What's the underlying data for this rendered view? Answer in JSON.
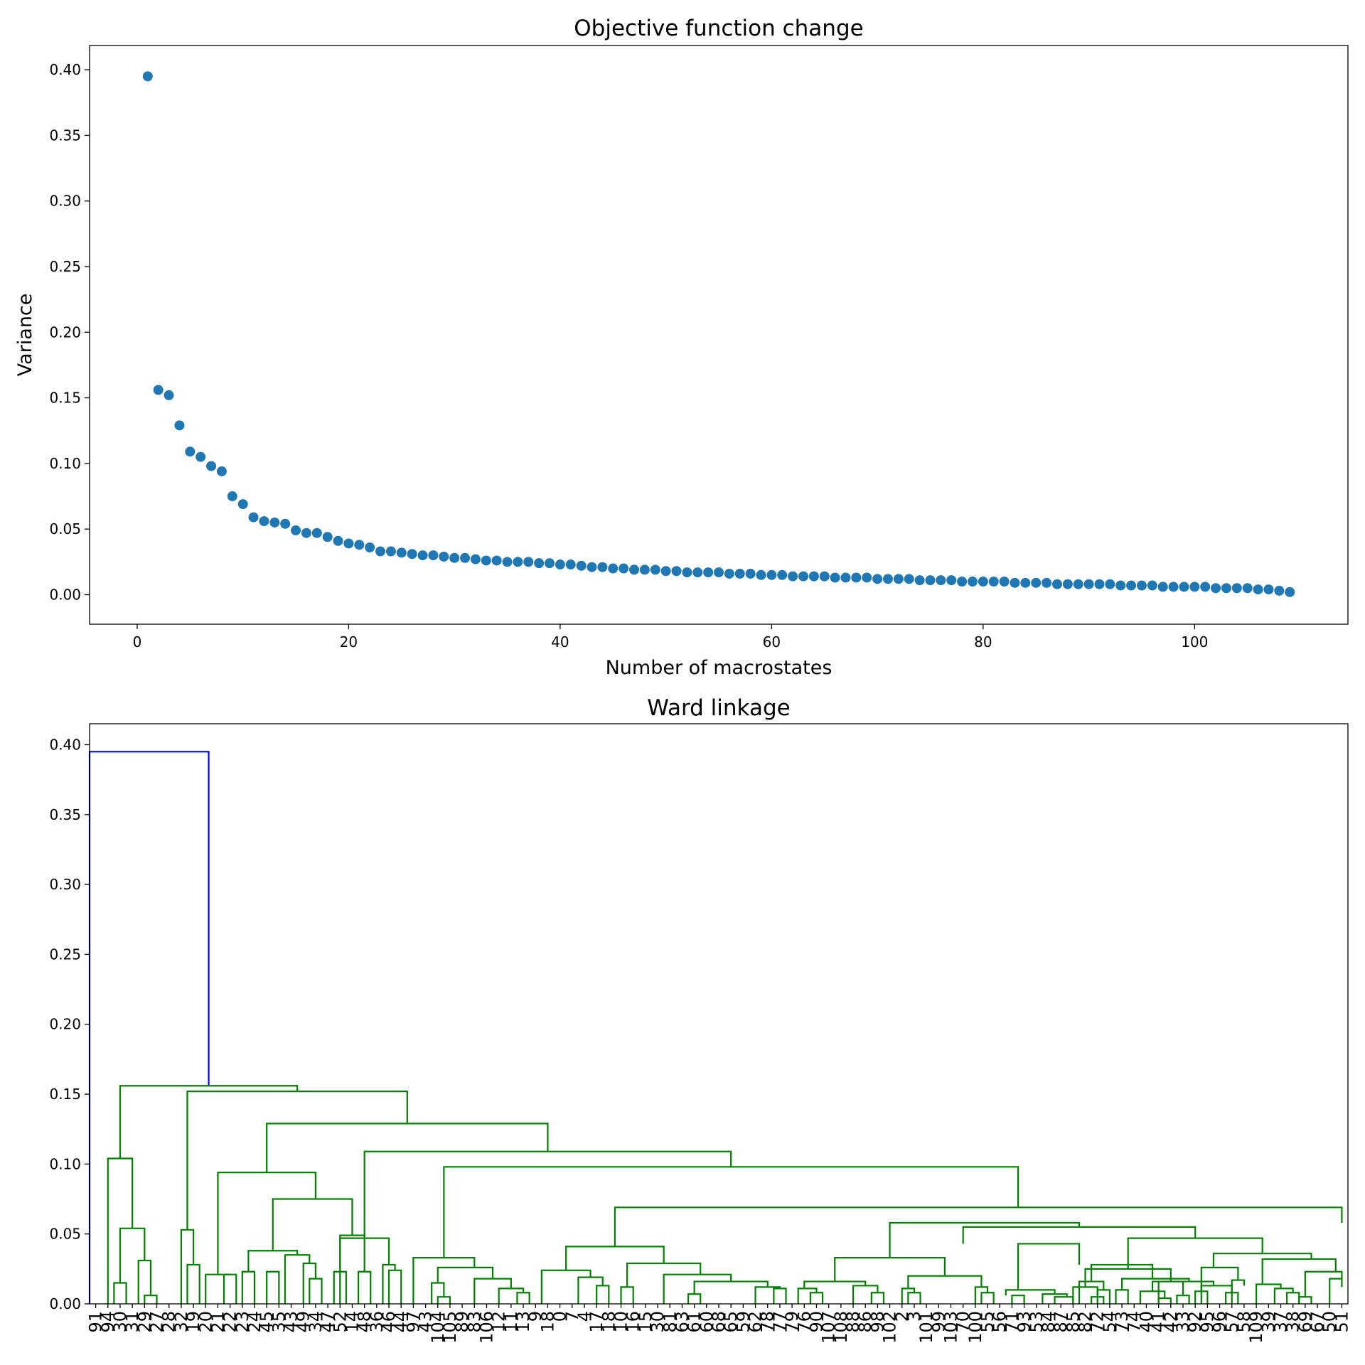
{
  "chart_data": [
    {
      "type": "scatter",
      "title": "Objective function change",
      "xlabel": "Number of macrostates",
      "ylabel": "Variance",
      "xlim": [
        -4.5,
        114.5
      ],
      "ylim": [
        -0.0225,
        0.4185
      ],
      "xticks": [
        0,
        20,
        40,
        60,
        80,
        100
      ],
      "yticks": [
        0.0,
        0.05,
        0.1,
        0.15,
        0.2,
        0.25,
        0.3,
        0.35,
        0.4
      ],
      "ytick_labels": [
        "0.00",
        "0.05",
        "0.10",
        "0.15",
        "0.20",
        "0.25",
        "0.30",
        "0.35",
        "0.40"
      ],
      "grid": false,
      "marker_color": "#1f77b4",
      "x": [
        1,
        2,
        3,
        4,
        5,
        6,
        7,
        8,
        9,
        10,
        11,
        12,
        13,
        14,
        15,
        16,
        17,
        18,
        19,
        20,
        21,
        22,
        23,
        24,
        25,
        26,
        27,
        28,
        29,
        30,
        31,
        32,
        33,
        34,
        35,
        36,
        37,
        38,
        39,
        40,
        41,
        42,
        43,
        44,
        45,
        46,
        47,
        48,
        49,
        50,
        51,
        52,
        53,
        54,
        55,
        56,
        57,
        58,
        59,
        60,
        61,
        62,
        63,
        64,
        65,
        66,
        67,
        68,
        69,
        70,
        71,
        72,
        73,
        74,
        75,
        76,
        77,
        78,
        79,
        80,
        81,
        82,
        83,
        84,
        85,
        86,
        87,
        88,
        89,
        90,
        91,
        92,
        93,
        94,
        95,
        96,
        97,
        98,
        99,
        100,
        101,
        102,
        103,
        104,
        105,
        106,
        107,
        108,
        109
      ],
      "y": [
        0.395,
        0.156,
        0.152,
        0.129,
        0.109,
        0.105,
        0.098,
        0.094,
        0.075,
        0.069,
        0.059,
        0.056,
        0.055,
        0.054,
        0.049,
        0.047,
        0.047,
        0.044,
        0.041,
        0.039,
        0.038,
        0.036,
        0.033,
        0.033,
        0.032,
        0.031,
        0.03,
        0.03,
        0.029,
        0.028,
        0.028,
        0.027,
        0.026,
        0.026,
        0.025,
        0.025,
        0.025,
        0.024,
        0.024,
        0.023,
        0.023,
        0.022,
        0.021,
        0.021,
        0.02,
        0.02,
        0.019,
        0.019,
        0.019,
        0.018,
        0.018,
        0.017,
        0.017,
        0.017,
        0.017,
        0.016,
        0.016,
        0.016,
        0.015,
        0.015,
        0.015,
        0.014,
        0.014,
        0.014,
        0.014,
        0.013,
        0.013,
        0.013,
        0.013,
        0.012,
        0.012,
        0.012,
        0.012,
        0.011,
        0.011,
        0.011,
        0.011,
        0.01,
        0.01,
        0.01,
        0.01,
        0.01,
        0.009,
        0.009,
        0.009,
        0.009,
        0.008,
        0.008,
        0.008,
        0.008,
        0.008,
        0.008,
        0.007,
        0.007,
        0.007,
        0.007,
        0.006,
        0.006,
        0.006,
        0.006,
        0.006,
        0.005,
        0.005,
        0.005,
        0.005,
        0.004,
        0.004,
        0.003,
        0.002
      ]
    },
    {
      "type": "dendrogram",
      "title": "Ward linkage",
      "xlabel": "",
      "ylabel": "",
      "ylim": [
        0.0,
        0.415
      ],
      "yticks": [
        0.0,
        0.05,
        0.1,
        0.15,
        0.2,
        0.25,
        0.3,
        0.35,
        0.4
      ],
      "ytick_labels": [
        "0.00",
        "0.05",
        "0.10",
        "0.15",
        "0.20",
        "0.25",
        "0.30",
        "0.35",
        "0.40"
      ],
      "grid": false,
      "above_threshold_color": "#0000ff",
      "cluster_color": "#008000",
      "leaf_labels": [
        "91",
        "94",
        "30",
        "31",
        "29",
        "27",
        "28",
        "32",
        "19",
        "20",
        "21",
        "22",
        "23",
        "24",
        "45",
        "35",
        "43",
        "49",
        "34",
        "47",
        "52",
        "14",
        "48",
        "36",
        "46",
        "44",
        "97",
        "43",
        "104",
        "105",
        "89",
        "83",
        "106",
        "12",
        "11",
        "13",
        "9",
        "18",
        "0",
        "7",
        "4",
        "17",
        "18",
        "10",
        "16",
        "15",
        "30",
        "81",
        "63",
        "61",
        "60",
        "68",
        "65",
        "59",
        "62",
        "78",
        "77",
        "79",
        "76",
        "90",
        "107",
        "108",
        "88",
        "86",
        "98",
        "102",
        "2",
        "3",
        "101",
        "99",
        "103",
        "70",
        "100",
        "55",
        "56",
        "71",
        "93",
        "53",
        "84",
        "87",
        "85",
        "82",
        "72",
        "54",
        "73",
        "74",
        "40",
        "41",
        "42",
        "33",
        "92",
        "95",
        "96",
        "57",
        "58",
        "109",
        "39",
        "37",
        "38",
        "69",
        "67",
        "50",
        "51"
      ],
      "leaf_label_color": "#000000",
      "leaf_count": 103,
      "leaf_x_range": [
        5,
        1025
      ],
      "merges": [
        {
          "lx": 0,
          "rx": 97.5,
          "h": 0.395,
          "lh": 0,
          "rh": 0.156,
          "color": "blue"
        },
        {
          "lx": 25,
          "rx": 170,
          "h": 0.156,
          "lh": 0.104,
          "rh": 0.152
        },
        {
          "lx": 15,
          "rx": 35,
          "h": 0.104,
          "lh": 0,
          "rh": 0.054
        },
        {
          "lx": 25,
          "rx": 45,
          "h": 0.054,
          "lh": 0.015,
          "rh": 0.031
        },
        {
          "lx": 20,
          "rx": 30,
          "h": 0.015,
          "lh": 0,
          "rh": 0
        },
        {
          "lx": 40,
          "rx": 50,
          "h": 0.031,
          "lh": 0,
          "rh": 0.006
        },
        {
          "lx": 45,
          "rx": 55,
          "h": 0.006,
          "lh": 0,
          "rh": 0
        },
        {
          "lx": 80,
          "rx": 260,
          "h": 0.152,
          "lh": 0.053,
          "rh": 0.129
        },
        {
          "lx": 75,
          "rx": 85,
          "h": 0.053,
          "lh": 0,
          "rh": 0.028
        },
        {
          "lx": 80,
          "rx": 90,
          "h": 0.028,
          "lh": 0,
          "rh": 0
        },
        {
          "lx": 145,
          "rx": 375,
          "h": 0.129,
          "lh": 0.094,
          "rh": 0.109
        },
        {
          "lx": 105,
          "rx": 185,
          "h": 0.094,
          "lh": 0.021,
          "rh": 0.075
        },
        {
          "lx": 95,
          "rx": 115,
          "h": 0.021,
          "lh": 0,
          "rh": 0.021
        },
        {
          "lx": 110,
          "rx": 120,
          "h": 0.021,
          "lh": 0,
          "rh": 0
        },
        {
          "lx": 125,
          "rx": 135,
          "h": 0.023,
          "lh": 0,
          "rh": 0
        },
        {
          "lx": 150,
          "rx": 215,
          "h": 0.075,
          "lh": 0.038,
          "rh": 0.049
        },
        {
          "lx": 130,
          "rx": 170,
          "h": 0.038,
          "lh": 0.023,
          "rh": 0.035
        },
        {
          "lx": 145,
          "rx": 155,
          "h": 0.023,
          "lh": 0,
          "rh": 0
        },
        {
          "lx": 160,
          "rx": 180,
          "h": 0.035,
          "lh": 0,
          "rh": 0.029
        },
        {
          "lx": 175,
          "rx": 185,
          "h": 0.029,
          "lh": 0,
          "rh": 0.018
        },
        {
          "lx": 180,
          "rx": 190,
          "h": 0.018,
          "lh": 0,
          "rh": 0
        },
        {
          "lx": 205,
          "rx": 225,
          "h": 0.049,
          "lh": 0,
          "rh": 0.023
        },
        {
          "lx": 220,
          "rx": 230,
          "h": 0.023,
          "lh": 0,
          "rh": 0
        },
        {
          "lx": 225,
          "rx": 525,
          "h": 0.109,
          "lh": 0.047,
          "rh": 0.098
        },
        {
          "lx": 205,
          "rx": 245,
          "h": 0.047,
          "lh": 0.023,
          "rh": 0.028
        },
        {
          "lx": 200,
          "rx": 210,
          "h": 0.023,
          "lh": 0,
          "rh": 0
        },
        {
          "lx": 240,
          "rx": 250,
          "h": 0.028,
          "lh": 0,
          "rh": 0.024
        },
        {
          "lx": 245,
          "rx": 255,
          "h": 0.024,
          "lh": 0,
          "rh": 0
        },
        {
          "lx": 290,
          "rx": 760,
          "h": 0.098,
          "lh": 0.033,
          "rh": 0.069
        },
        {
          "lx": 265,
          "rx": 315,
          "h": 0.033,
          "lh": 0,
          "rh": 0.026
        },
        {
          "lx": 285,
          "rx": 330,
          "h": 0.026,
          "lh": 0.015,
          "rh": 0.018
        },
        {
          "lx": 280,
          "rx": 290,
          "h": 0.015,
          "lh": 0,
          "rh": 0.005
        },
        {
          "lx": 285,
          "rx": 295,
          "h": 0.005,
          "lh": 0,
          "rh": 0
        },
        {
          "lx": 315,
          "rx": 345,
          "h": 0.018,
          "lh": 0,
          "rh": 0.011
        },
        {
          "lx": 335,
          "rx": 355,
          "h": 0.011,
          "lh": 0,
          "rh": 0.008
        },
        {
          "lx": 350,
          "rx": 360,
          "h": 0.008,
          "lh": 0,
          "rh": 0
        },
        {
          "lx": 430,
          "rx": 1025,
          "h": 0.069,
          "lh": 0.041,
          "rh": 0.058
        },
        {
          "lx": 390,
          "rx": 470,
          "h": 0.041,
          "lh": 0.024,
          "rh": 0.029
        },
        {
          "lx": 370,
          "rx": 410,
          "h": 0.024,
          "lh": 0,
          "rh": 0.019
        },
        {
          "lx": 400,
          "rx": 420,
          "h": 0.019,
          "lh": 0,
          "rh": 0.013
        },
        {
          "lx": 415,
          "rx": 425,
          "h": 0.013,
          "lh": 0,
          "rh": 0
        },
        {
          "lx": 440,
          "rx": 500,
          "h": 0.029,
          "lh": 0.012,
          "rh": 0.021
        },
        {
          "lx": 435,
          "rx": 445,
          "h": 0.012,
          "lh": 0,
          "rh": 0
        },
        {
          "lx": 470,
          "rx": 525,
          "h": 0.021,
          "lh": 0,
          "rh": 0.016
        },
        {
          "lx": 495,
          "rx": 555,
          "h": 0.016,
          "lh": 0.007,
          "rh": 0.012
        },
        {
          "lx": 490,
          "rx": 500,
          "h": 0.007,
          "lh": 0,
          "rh": 0
        },
        {
          "lx": 545,
          "rx": 565,
          "h": 0.012,
          "lh": 0,
          "rh": 0.011
        },
        {
          "lx": 560,
          "rx": 570,
          "h": 0.011,
          "lh": 0,
          "rh": 0
        },
        {
          "lx": 655,
          "rx": 810,
          "h": 0.058,
          "lh": 0.033,
          "rh": 0.055
        },
        {
          "lx": 610,
          "rx": 700,
          "h": 0.033,
          "lh": 0.016,
          "rh": 0.02
        },
        {
          "lx": 585,
          "rx": 635,
          "h": 0.016,
          "lh": 0.011,
          "rh": 0.013
        },
        {
          "lx": 580,
          "rx": 595,
          "h": 0.011,
          "lh": 0,
          "rh": 0.008
        },
        {
          "lx": 590,
          "rx": 600,
          "h": 0.008,
          "lh": 0,
          "rh": 0
        },
        {
          "lx": 625,
          "rx": 645,
          "h": 0.013,
          "lh": 0,
          "rh": 0.008
        },
        {
          "lx": 640,
          "rx": 650,
          "h": 0.008,
          "lh": 0,
          "rh": 0
        },
        {
          "lx": 670,
          "rx": 730,
          "h": 0.02,
          "lh": 0.011,
          "rh": 0.012
        },
        {
          "lx": 665,
          "rx": 675,
          "h": 0.011,
          "lh": 0,
          "rh": 0.008
        },
        {
          "lx": 670,
          "rx": 680,
          "h": 0.008,
          "lh": 0,
          "rh": 0
        },
        {
          "lx": 725,
          "rx": 735,
          "h": 0.012,
          "lh": 0,
          "rh": 0.008
        },
        {
          "lx": 730,
          "rx": 740,
          "h": 0.008,
          "lh": 0,
          "rh": 0
        },
        {
          "lx": 715,
          "rx": 905,
          "h": 0.055,
          "lh": 0.043,
          "rh": 0.047
        },
        {
          "lx": 760,
          "rx": 810,
          "h": 0.043,
          "lh": 0.01,
          "rh": 0.028
        },
        {
          "lx": 750,
          "rx": 790,
          "h": 0.01,
          "lh": 0.006,
          "rh": 0.007
        },
        {
          "lx": 755,
          "rx": 765,
          "h": 0.006,
          "lh": 0,
          "rh": 0
        },
        {
          "lx": 780,
          "rx": 800,
          "h": 0.007,
          "lh": 0,
          "rh": 0.005
        },
        {
          "lx": 790,
          "rx": 805,
          "h": 0.005,
          "lh": 0,
          "rh": 0
        },
        {
          "lx": 820,
          "rx": 870,
          "h": 0.028,
          "lh": 0.016,
          "rh": 0.018
        },
        {
          "lx": 810,
          "rx": 830,
          "h": 0.016,
          "lh": 0,
          "rh": 0.01
        },
        {
          "lx": 825,
          "rx": 835,
          "h": 0.01,
          "lh": 0,
          "rh": 0
        },
        {
          "lx": 845,
          "rx": 900,
          "h": 0.018,
          "lh": 0.01,
          "rh": 0.016
        },
        {
          "lx": 840,
          "rx": 850,
          "h": 0.01,
          "lh": 0,
          "rh": 0
        },
        {
          "lx": 870,
          "rx": 920,
          "h": 0.016,
          "lh": 0.009,
          "rh": 0.013
        },
        {
          "lx": 860,
          "rx": 880,
          "h": 0.009,
          "lh": 0,
          "rh": 0.004
        },
        {
          "lx": 875,
          "rx": 885,
          "h": 0.004,
          "lh": 0,
          "rh": 0
        },
        {
          "lx": 910,
          "rx": 935,
          "h": 0.013,
          "lh": 0,
          "rh": 0.008
        },
        {
          "lx": 930,
          "rx": 940,
          "h": 0.008,
          "lh": 0,
          "rh": 0
        },
        {
          "lx": 850,
          "rx": 960,
          "h": 0.047,
          "lh": 0.025,
          "rh": 0.036
        },
        {
          "lx": 815,
          "rx": 885,
          "h": 0.025,
          "lh": 0.012,
          "rh": 0.016
        },
        {
          "lx": 805,
          "rx": 825,
          "h": 0.012,
          "lh": 0,
          "rh": 0.005
        },
        {
          "lx": 820,
          "rx": 830,
          "h": 0.005,
          "lh": 0,
          "rh": 0
        },
        {
          "lx": 875,
          "rx": 895,
          "h": 0.016,
          "lh": 0,
          "rh": 0.006
        },
        {
          "lx": 890,
          "rx": 900,
          "h": 0.006,
          "lh": 0,
          "rh": 0
        },
        {
          "lx": 920,
          "rx": 1000,
          "h": 0.036,
          "lh": 0.026,
          "rh": 0.032
        },
        {
          "lx": 910,
          "rx": 940,
          "h": 0.026,
          "lh": 0.009,
          "rh": 0.017
        },
        {
          "lx": 905,
          "rx": 915,
          "h": 0.009,
          "lh": 0,
          "rh": 0
        },
        {
          "lx": 935,
          "rx": 945,
          "h": 0.017,
          "lh": 0,
          "rh": 0.013
        },
        {
          "lx": 960,
          "rx": 1020,
          "h": 0.032,
          "lh": 0.014,
          "rh": 0.023
        },
        {
          "lx": 955,
          "rx": 975,
          "h": 0.014,
          "lh": 0,
          "rh": 0.011
        },
        {
          "lx": 970,
          "rx": 985,
          "h": 0.011,
          "lh": 0,
          "rh": 0.008
        },
        {
          "lx": 980,
          "rx": 990,
          "h": 0.008,
          "lh": 0,
          "rh": 0
        },
        {
          "lx": 995,
          "rx": 1025,
          "h": 0.023,
          "lh": 0.005,
          "rh": 0.018
        },
        {
          "lx": 990,
          "rx": 1000,
          "h": 0.005,
          "lh": 0,
          "rh": 0
        },
        {
          "lx": 1015,
          "rx": 1025,
          "h": 0.018,
          "lh": 0,
          "rh": 0.012
        }
      ]
    }
  ]
}
